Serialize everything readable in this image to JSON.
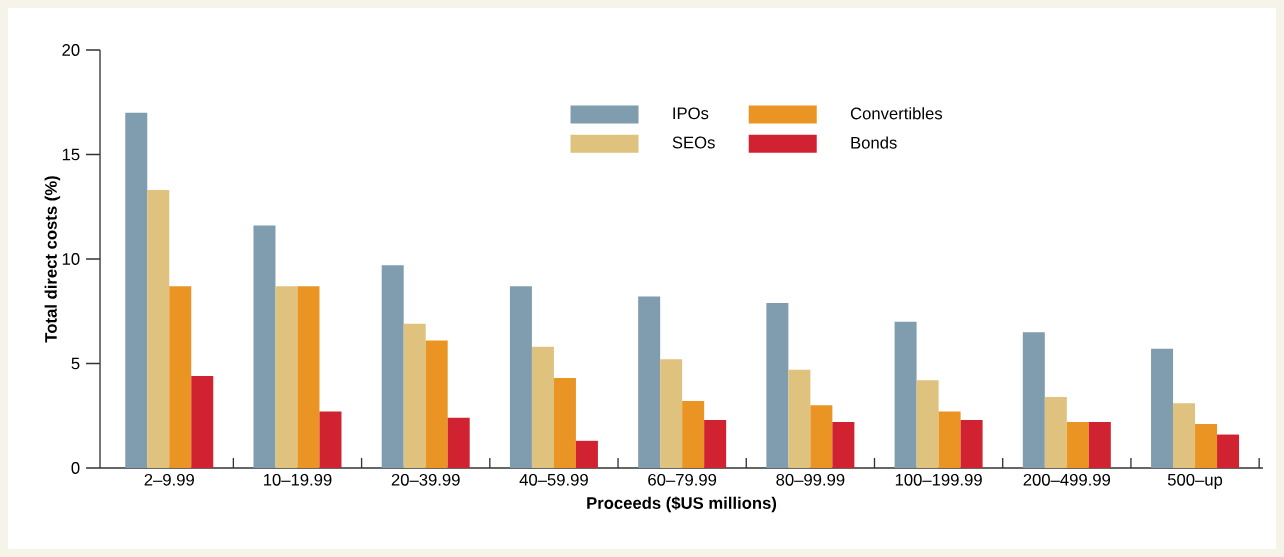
{
  "chart_data": {
    "type": "bar",
    "xlabel": "Proceeds ($US millions)",
    "ylabel": "Total direct costs (%)",
    "categories": [
      "2–9.99",
      "10–19.99",
      "20–39.99",
      "40–59.99",
      "60–79.99",
      "80–99.99",
      "100–199.99",
      "200–499.99",
      "500–up"
    ],
    "series": [
      {
        "name": "IPOs",
        "color": "#7f9daf",
        "values": [
          17.0,
          11.6,
          9.7,
          8.7,
          8.2,
          7.9,
          7.0,
          6.5,
          5.7
        ]
      },
      {
        "name": "SEOs",
        "color": "#dec27e",
        "values": [
          13.3,
          8.7,
          6.9,
          5.8,
          5.2,
          4.7,
          4.2,
          3.4,
          3.1
        ]
      },
      {
        "name": "Convertibles",
        "color": "#e99423",
        "values": [
          8.7,
          8.7,
          6.1,
          4.3,
          3.2,
          3.0,
          2.7,
          2.2,
          2.1
        ]
      },
      {
        "name": "Bonds",
        "color": "#d12232",
        "values": [
          4.4,
          2.7,
          2.4,
          1.3,
          2.3,
          2.2,
          2.3,
          2.2,
          1.6
        ]
      }
    ],
    "ylim": [
      0,
      20
    ],
    "yticks": [
      0,
      5,
      10,
      15,
      20
    ],
    "legend": "top"
  }
}
